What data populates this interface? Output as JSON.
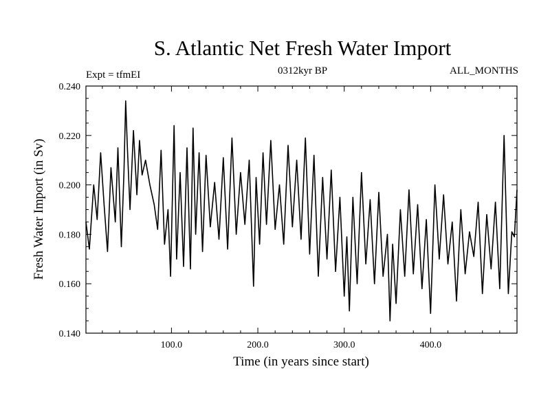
{
  "chart_data": {
    "type": "line",
    "title": "S. Atlantic Net Fresh Water Import",
    "subtitle": "0312kyr BP",
    "experiment": "Expt = tfmEI",
    "months": "ALL_MONTHS",
    "xlabel": "Time (in years since start)",
    "ylabel": "Fresh Water Import (in Sv)",
    "xlim": [
      1,
      500
    ],
    "ylim": [
      0.14,
      0.24
    ],
    "xticks": [
      100,
      200,
      300,
      400
    ],
    "xtick_labels": [
      "100.0",
      "200.0",
      "300.0",
      "400.0"
    ],
    "yticks": [
      0.14,
      0.16,
      0.18,
      0.2,
      0.22,
      0.24
    ],
    "ytick_labels": [
      "0.140",
      "0.160",
      "0.180",
      "0.200",
      "0.220",
      "0.240"
    ],
    "grid": false,
    "series": [
      {
        "color": "#000000",
        "x": [
          1,
          5,
          10,
          14,
          18,
          22,
          26,
          30,
          35,
          38,
          42,
          45,
          47,
          49,
          52,
          56,
          60,
          63,
          66,
          70,
          75,
          80,
          84,
          88,
          92,
          96,
          99,
          103,
          106,
          110,
          114,
          118,
          122,
          125,
          128,
          132,
          136,
          140,
          145,
          150,
          155,
          160,
          165,
          170,
          175,
          180,
          185,
          190,
          195,
          198,
          202,
          206,
          210,
          215,
          220,
          225,
          230,
          235,
          240,
          245,
          250,
          255,
          260,
          265,
          270,
          275,
          280,
          285,
          290,
          295,
          300,
          303,
          306,
          310,
          315,
          320,
          325,
          330,
          335,
          340,
          345,
          350,
          353,
          356,
          360,
          365,
          370,
          375,
          380,
          385,
          390,
          395,
          400,
          405,
          410,
          415,
          420,
          425,
          430,
          435,
          440,
          445,
          450,
          455,
          460,
          465,
          470,
          475,
          480,
          485,
          490,
          494,
          497,
          500
        ],
        "y": [
          0.185,
          0.174,
          0.2,
          0.186,
          0.213,
          0.192,
          0.173,
          0.207,
          0.185,
          0.215,
          0.175,
          0.205,
          0.234,
          0.215,
          0.19,
          0.222,
          0.196,
          0.218,
          0.204,
          0.21,
          0.2,
          0.192,
          0.182,
          0.214,
          0.176,
          0.19,
          0.163,
          0.224,
          0.17,
          0.205,
          0.167,
          0.215,
          0.166,
          0.223,
          0.18,
          0.213,
          0.173,
          0.212,
          0.183,
          0.201,
          0.178,
          0.211,
          0.174,
          0.219,
          0.18,
          0.205,
          0.184,
          0.21,
          0.159,
          0.203,
          0.176,
          0.213,
          0.184,
          0.218,
          0.182,
          0.2,
          0.176,
          0.216,
          0.183,
          0.21,
          0.178,
          0.219,
          0.172,
          0.212,
          0.163,
          0.203,
          0.17,
          0.206,
          0.165,
          0.195,
          0.155,
          0.179,
          0.149,
          0.195,
          0.16,
          0.205,
          0.168,
          0.194,
          0.16,
          0.197,
          0.163,
          0.18,
          0.145,
          0.176,
          0.152,
          0.19,
          0.163,
          0.198,
          0.164,
          0.192,
          0.158,
          0.186,
          0.148,
          0.2,
          0.17,
          0.196,
          0.168,
          0.185,
          0.153,
          0.19,
          0.164,
          0.181,
          0.171,
          0.193,
          0.156,
          0.188,
          0.166,
          0.193,
          0.158,
          0.22,
          0.156,
          0.181,
          0.179,
          0.198
        ]
      }
    ]
  }
}
